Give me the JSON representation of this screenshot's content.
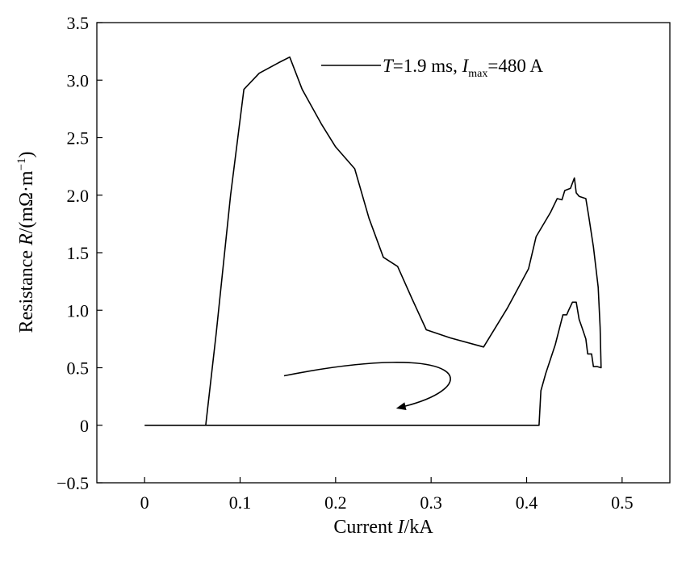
{
  "chart_data": {
    "type": "line",
    "xlabel": {
      "prefix": "Current ",
      "var": "I",
      "suffix": "/kA"
    },
    "ylabel": {
      "prefix": "Resistance ",
      "var": "R",
      "suffix": "/(mΩ·m",
      "sup": "−1",
      "close": ")"
    },
    "xlim": [
      -0.05,
      0.55
    ],
    "ylim": [
      -0.5,
      3.5
    ],
    "xticks": [
      0,
      0.1,
      0.2,
      0.3,
      0.4,
      0.5
    ],
    "xtick_labels": [
      "0",
      "0.1",
      "0.2",
      "0.3",
      "0.4",
      "0.5"
    ],
    "yticks": [
      -0.5,
      0,
      0.5,
      1.0,
      1.5,
      2.0,
      2.5,
      3.0,
      3.5
    ],
    "ytick_labels": [
      "−0.5",
      "0",
      "0.5",
      "1.0",
      "1.5",
      "2.0",
      "2.5",
      "3.0",
      "3.5"
    ],
    "grid": false,
    "legend_position": "top-right",
    "series": [
      {
        "legend": {
          "T_var": "T",
          "T_text": "=1.9 ms, ",
          "I_var": "I",
          "I_sub": "max",
          "I_text": "=480 A"
        },
        "x": [
          0.0,
          0.064,
          0.075,
          0.09,
          0.104,
          0.12,
          0.14,
          0.152,
          0.165,
          0.185,
          0.2,
          0.22,
          0.235,
          0.25,
          0.265,
          0.28,
          0.295,
          0.32,
          0.355,
          0.38,
          0.402,
          0.41,
          0.425,
          0.432,
          0.437,
          0.44,
          0.446,
          0.45,
          0.452,
          0.455,
          0.462,
          0.465,
          0.47,
          0.475,
          0.477,
          0.478,
          0.474,
          0.47,
          0.468,
          0.464,
          0.462,
          0.458,
          0.455,
          0.452,
          0.448,
          0.444,
          0.442,
          0.438,
          0.43,
          0.42,
          0.415,
          0.413,
          0.0
        ],
        "y": [
          0.0,
          0.0,
          0.8,
          2.0,
          2.92,
          3.06,
          3.15,
          3.2,
          2.92,
          2.62,
          2.42,
          2.23,
          1.8,
          1.46,
          1.38,
          1.1,
          0.83,
          0.76,
          0.68,
          1.02,
          1.36,
          1.64,
          1.85,
          1.97,
          1.96,
          2.04,
          2.06,
          2.15,
          2.02,
          1.99,
          1.97,
          1.82,
          1.55,
          1.2,
          0.85,
          0.5,
          0.51,
          0.51,
          0.62,
          0.62,
          0.75,
          0.85,
          0.92,
          1.07,
          1.07,
          1.0,
          0.96,
          0.96,
          0.7,
          0.45,
          0.3,
          0.0,
          0.0
        ]
      }
    ],
    "annotations": [
      {
        "type": "arrow",
        "description": "curved arrow indicating direction of loop traversal",
        "path_data_units": [
          [
            0.146,
            0.43
          ],
          [
            0.34,
            0.75
          ],
          [
            0.36,
            0.33
          ],
          [
            0.265,
            0.15
          ]
        ]
      }
    ]
  }
}
